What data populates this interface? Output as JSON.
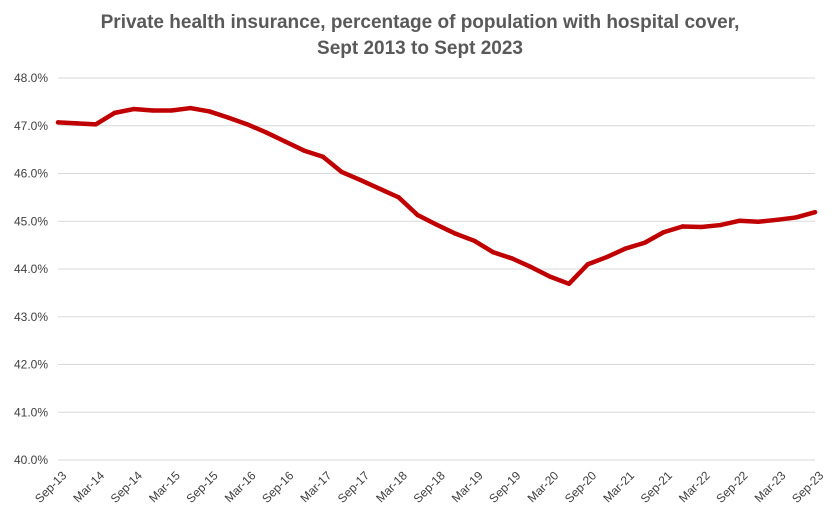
{
  "chart_data": {
    "type": "line",
    "title_line1": "Private health insurance, percentage of population with hospital cover,",
    "title_line2": "Sept 2013 to Sept 2023",
    "xlabel": "",
    "ylabel": "",
    "ylim": [
      40.0,
      48.0
    ],
    "yticks": [
      "40.0%",
      "41.0%",
      "42.0%",
      "43.0%",
      "44.0%",
      "45.0%",
      "46.0%",
      "47.0%",
      "48.0%"
    ],
    "x": [
      "Sep-13",
      "Dec-13",
      "Mar-14",
      "Jun-14",
      "Sep-14",
      "Dec-14",
      "Mar-15",
      "Jun-15",
      "Sep-15",
      "Dec-15",
      "Mar-16",
      "Jun-16",
      "Sep-16",
      "Dec-16",
      "Mar-17",
      "Jun-17",
      "Sep-17",
      "Dec-17",
      "Mar-18",
      "Jun-18",
      "Sep-18",
      "Dec-18",
      "Mar-19",
      "Jun-19",
      "Sep-19",
      "Dec-19",
      "Mar-20",
      "Jun-20",
      "Sep-20",
      "Dec-20",
      "Mar-21",
      "Jun-21",
      "Sep-21",
      "Dec-21",
      "Mar-22",
      "Jun-22",
      "Sep-22",
      "Dec-22",
      "Mar-23",
      "Jun-23",
      "Sep-23"
    ],
    "xtick_labels": [
      "Sep-13",
      "Mar-14",
      "Sep-14",
      "Mar-15",
      "Sep-15",
      "Mar-16",
      "Sep-16",
      "Mar-17",
      "Sep-17",
      "Mar-18",
      "Sep-18",
      "Mar-19",
      "Sep-19",
      "Mar-20",
      "Sep-20",
      "Mar-21",
      "Sep-21",
      "Mar-22",
      "Sep-22",
      "Mar-23",
      "Sep-23"
    ],
    "series": [
      {
        "name": "Hospital cover",
        "color": "#c00000",
        "values": [
          47.07,
          47.05,
          47.03,
          47.27,
          47.35,
          47.32,
          47.32,
          47.37,
          47.3,
          47.17,
          47.03,
          46.86,
          46.67,
          46.48,
          46.35,
          46.03,
          45.86,
          45.68,
          45.5,
          45.13,
          44.93,
          44.74,
          44.59,
          44.35,
          44.22,
          44.04,
          43.84,
          43.69,
          44.1,
          44.25,
          44.43,
          44.55,
          44.77,
          44.89,
          44.88,
          44.92,
          45.01,
          44.99,
          45.03,
          45.08,
          45.19
        ]
      }
    ]
  }
}
